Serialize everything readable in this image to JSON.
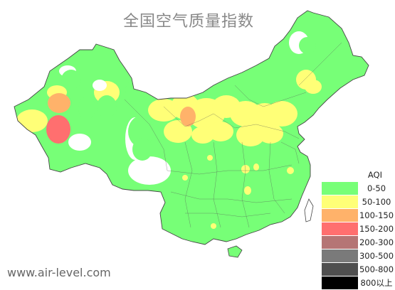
{
  "title": "全国空气质量指数",
  "watermark": "www.air-level.com",
  "legend": {
    "title": "AQI",
    "items": [
      {
        "label": "0-50",
        "color": "#77ff77"
      },
      {
        "label": "50-100",
        "color": "#ffff77"
      },
      {
        "label": "100-150",
        "color": "#ffb26a"
      },
      {
        "label": "150-200",
        "color": "#ff6f6f"
      },
      {
        "label": "200-300",
        "color": "#b57575"
      },
      {
        "label": "300-500",
        "color": "#7a7a7a"
      },
      {
        "label": "500-800",
        "color": "#4f4f4f"
      },
      {
        "label": "800以上",
        "color": "#000000"
      }
    ]
  },
  "map": {
    "background_level": "0-50",
    "region_levels": [
      "50-100",
      "0-50",
      "100-150",
      "150-200"
    ]
  }
}
